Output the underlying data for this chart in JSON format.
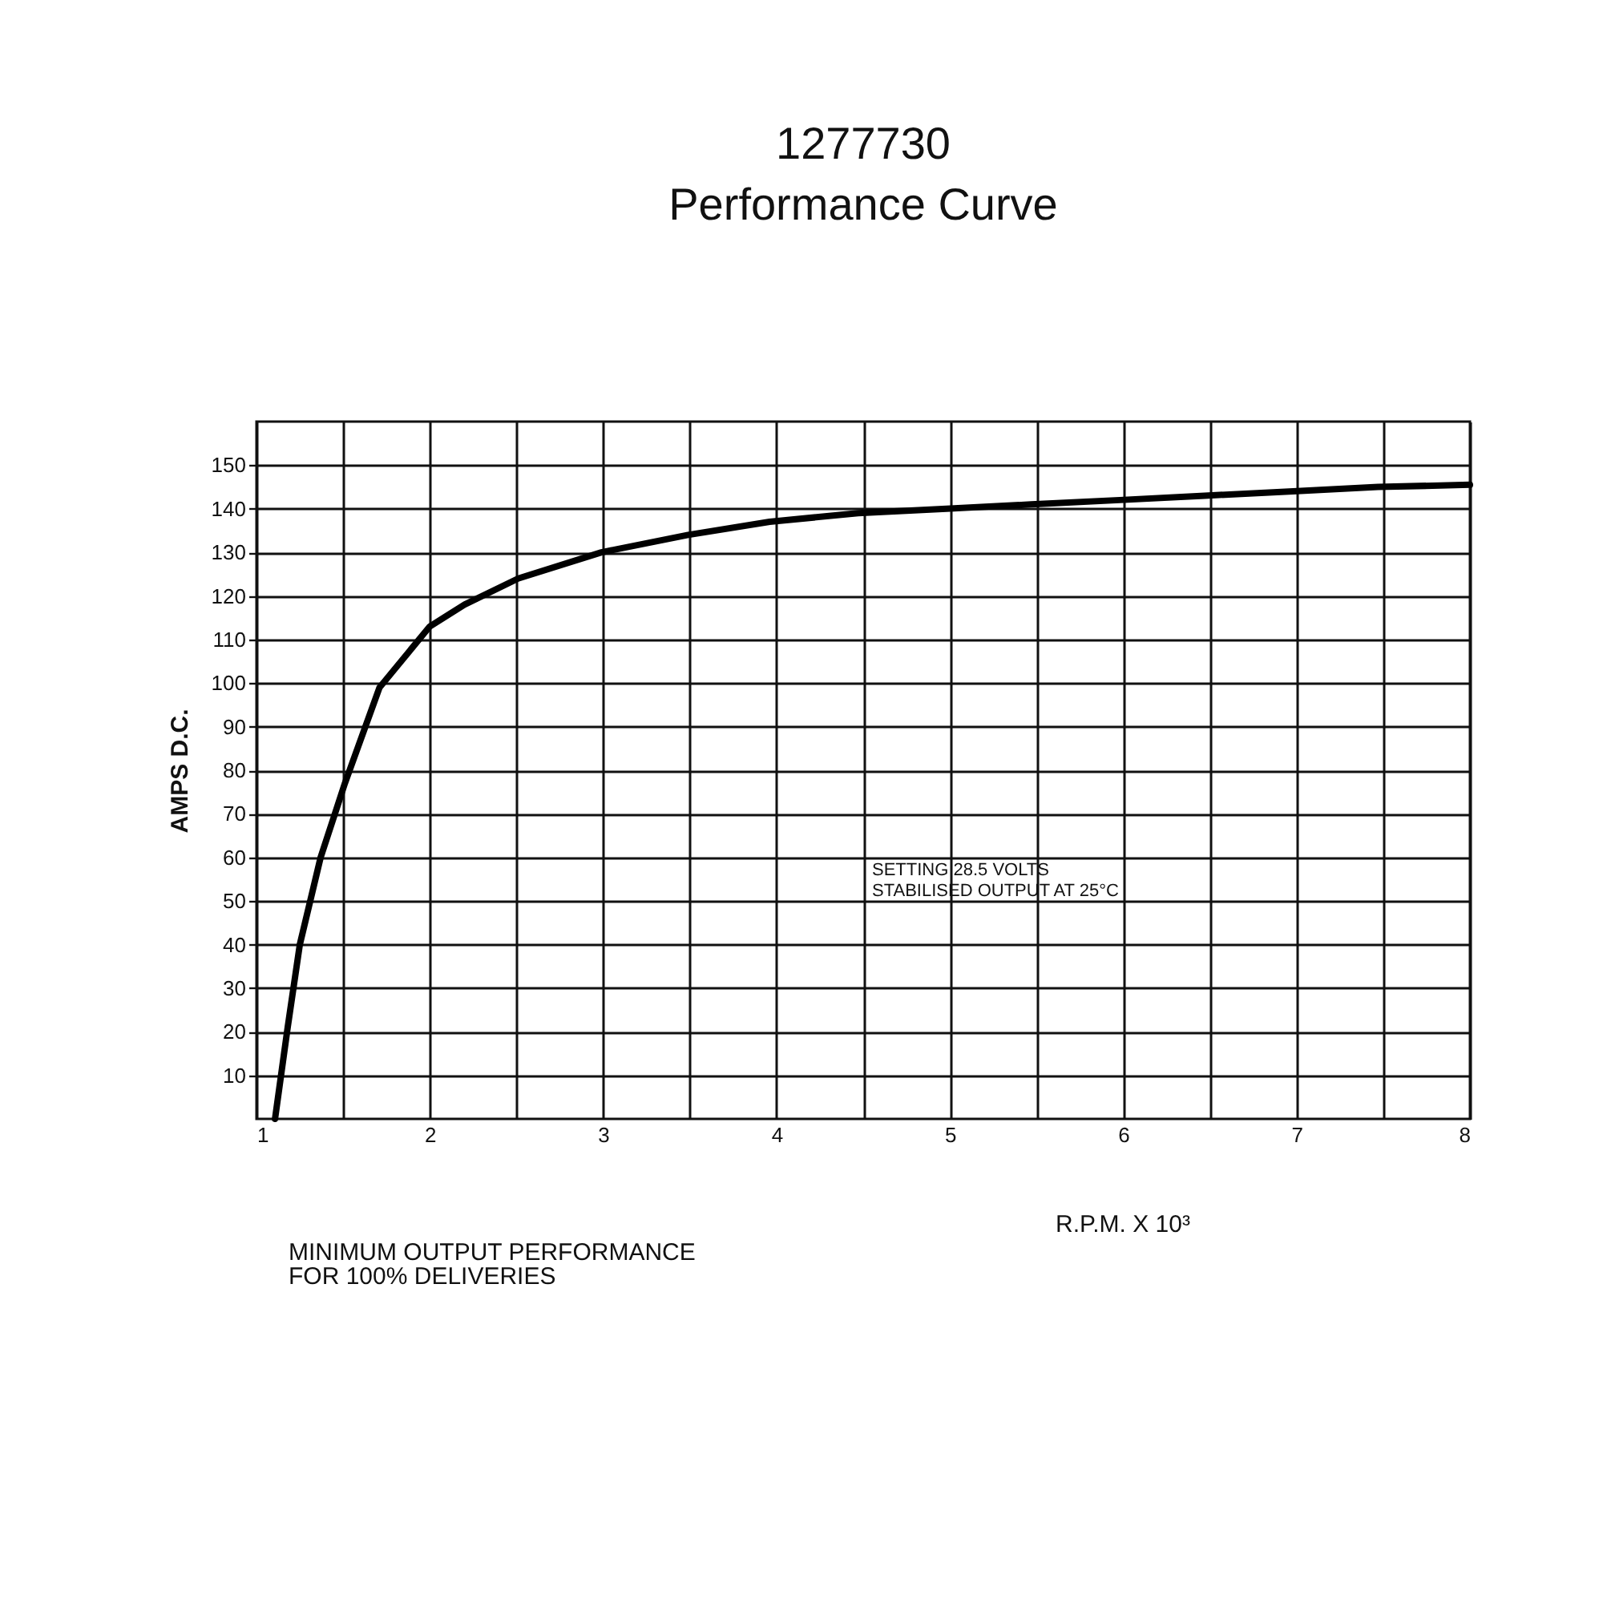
{
  "chart_data": {
    "type": "line",
    "title": "1277730",
    "subtitle": "Performance Curve",
    "xlabel": "R.P.M. X 10³",
    "ylabel": "AMPS D.C.",
    "x": [
      1.107,
      1.18,
      1.25,
      1.37,
      1.51,
      1.71,
      2.0,
      2.2,
      2.51,
      2.99,
      3.49,
      3.96,
      4.47,
      4.98,
      5.47,
      5.98,
      6.47,
      6.98,
      7.47,
      8.0
    ],
    "series": [
      {
        "color": "#000000",
        "values": [
          0,
          21,
          40,
          60,
          77,
          99,
          113,
          118,
          124,
          130,
          134,
          137,
          139,
          140,
          141,
          142,
          143,
          144,
          145,
          145.5
        ]
      }
    ],
    "xlim": [
      1,
      8
    ],
    "ylim": [
      0,
      160
    ],
    "xticks": [
      1,
      {
        "value": 1.5,
        "label": null
      },
      2,
      {
        "value": 2.5,
        "label": null
      },
      3,
      {
        "value": 3.5,
        "label": null
      },
      4,
      {
        "value": 4.5,
        "label": null
      },
      5,
      {
        "value": 5.5,
        "label": null
      },
      6,
      {
        "value": 6.5,
        "label": null
      },
      7,
      {
        "value": 7.5,
        "label": null
      },
      8
    ],
    "yticks": [
      10,
      20,
      30,
      40,
      50,
      60,
      70,
      80,
      90,
      100,
      110,
      120,
      130,
      140,
      150
    ],
    "grid": true,
    "marker": "none",
    "line_style": "solid",
    "annotations": [
      "SETTING 28.5 VOLTS\nSTABILISED OUTPUT AT 25°C",
      "MINIMUM OUTPUT PERFORMANCE\nFOR 100% DELIVERIES"
    ]
  }
}
